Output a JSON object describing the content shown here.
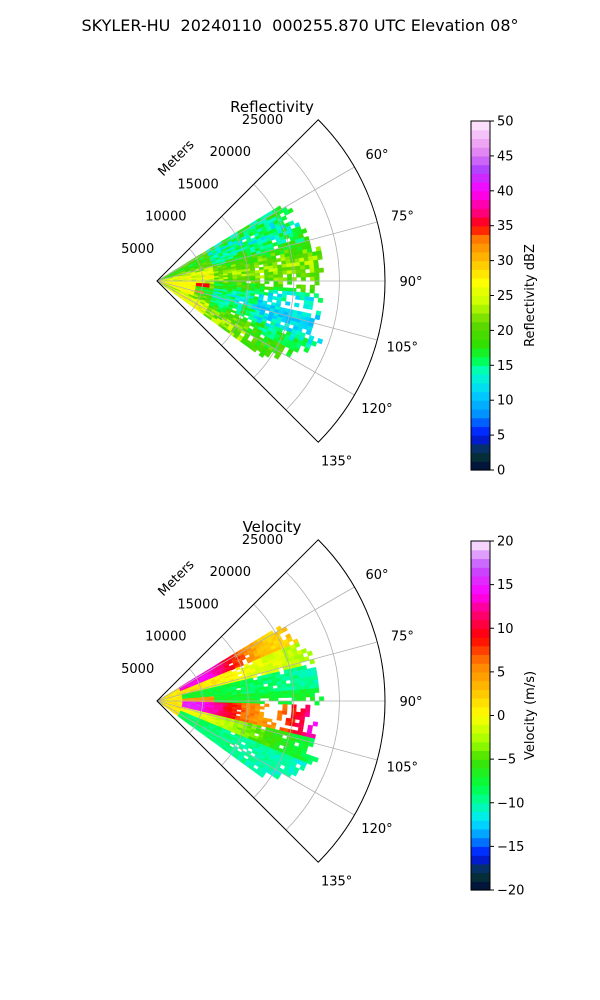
{
  "figure_title": "SKYLER-HU  20240110  000255.870 UTC Elevation 08°",
  "chart_data": [
    {
      "type": "heatmap",
      "projection": "polar sector",
      "title": "Reflectivity",
      "radial_label": "Meters",
      "radial_ticks": [
        5000,
        10000,
        15000,
        20000,
        25000
      ],
      "radial_tick_labels": [
        "5000",
        "10000",
        "15000",
        "20000",
        "25000"
      ],
      "radial_range": [
        0,
        25000
      ],
      "azimuth_range": [
        45,
        135
      ],
      "azimuth_ticks": [
        60,
        75,
        90,
        105,
        120,
        135
      ],
      "azimuth_tick_labels": [
        "60°",
        "75°",
        "90°",
        "105°",
        "120°",
        "135°"
      ],
      "grid": true,
      "colorbar": {
        "label": "Reflectivity dBZ",
        "range": [
          0,
          50
        ],
        "ticks": [
          0,
          5,
          10,
          15,
          20,
          25,
          30,
          35,
          40,
          45,
          50
        ],
        "tick_labels": [
          "0",
          "5",
          "10",
          "15",
          "20",
          "25",
          "30",
          "35",
          "40",
          "45",
          "50"
        ],
        "stops": [
          {
            "v": 0,
            "c": "#000a3c"
          },
          {
            "v": 2.5,
            "c": "#063a36"
          },
          {
            "v": 5,
            "c": "#0010ff"
          },
          {
            "v": 8,
            "c": "#0090ff"
          },
          {
            "v": 11,
            "c": "#00d0ff"
          },
          {
            "v": 14,
            "c": "#00ffc8"
          },
          {
            "v": 16,
            "c": "#00ff40"
          },
          {
            "v": 18,
            "c": "#30e000"
          },
          {
            "v": 21,
            "c": "#60d800"
          },
          {
            "v": 24,
            "c": "#c8ff00"
          },
          {
            "v": 27,
            "c": "#ffff00"
          },
          {
            "v": 30,
            "c": "#ffc000"
          },
          {
            "v": 33,
            "c": "#ff8000"
          },
          {
            "v": 35,
            "c": "#ff0000"
          },
          {
            "v": 37,
            "c": "#ff0080"
          },
          {
            "v": 40,
            "c": "#ff00ff"
          },
          {
            "v": 43,
            "c": "#b040ff"
          },
          {
            "v": 46,
            "c": "#e890f0"
          },
          {
            "v": 50,
            "c": "#ffeeff"
          }
        ]
      },
      "data_description": "mostly 15–25 dBZ (green) echoes within ~18000 m between azimuth 60° and 125°; yellow (~27 dBZ) near radar along 100–105°; small red (~35 dBZ) cores near 5000 m at ~95° and ~105°"
    },
    {
      "type": "heatmap",
      "projection": "polar sector",
      "title": "Velocity",
      "radial_label": "Meters",
      "radial_ticks": [
        5000,
        10000,
        15000,
        20000,
        25000
      ],
      "radial_tick_labels": [
        "5000",
        "10000",
        "15000",
        "20000",
        "25000"
      ],
      "radial_range": [
        0,
        25000
      ],
      "azimuth_range": [
        45,
        135
      ],
      "azimuth_ticks": [
        60,
        75,
        90,
        105,
        120,
        135
      ],
      "azimuth_tick_labels": [
        "60°",
        "75°",
        "90°",
        "105°",
        "120°",
        "135°"
      ],
      "grid": true,
      "colorbar": {
        "label": "Velocity (m/s)",
        "range": [
          -20,
          20
        ],
        "ticks": [
          -20,
          -15,
          -10,
          -5,
          0,
          5,
          10,
          15,
          20
        ],
        "tick_labels": [
          "−20",
          "−15",
          "−10",
          "−5",
          "0",
          "5",
          "10",
          "15",
          "20"
        ],
        "stops": [
          {
            "v": -20,
            "c": "#000a3c"
          },
          {
            "v": -18,
            "c": "#063a36"
          },
          {
            "v": -16,
            "c": "#0010ff"
          },
          {
            "v": -14,
            "c": "#0090ff"
          },
          {
            "v": -12,
            "c": "#00e8ff"
          },
          {
            "v": -10,
            "c": "#00ffa0"
          },
          {
            "v": -8,
            "c": "#00ff40"
          },
          {
            "v": -5,
            "c": "#40e000"
          },
          {
            "v": -3,
            "c": "#a0ff00"
          },
          {
            "v": 0,
            "c": "#ffff00"
          },
          {
            "v": 3,
            "c": "#ffc000"
          },
          {
            "v": 6,
            "c": "#ff8000"
          },
          {
            "v": 9,
            "c": "#ff0000"
          },
          {
            "v": 12,
            "c": "#ff0080"
          },
          {
            "v": 14,
            "c": "#ff00ff"
          },
          {
            "v": 17,
            "c": "#c050ff"
          },
          {
            "v": 20,
            "c": "#ffeeff"
          }
        ]
      },
      "data_description": "positive velocities (red/magenta, 5–15 m/s) in outer band at azimuth 60–70° and band near 95–105°; negative velocities (green/cyan, −5 to −12 m/s) along 80–90° and 115–125°; yellow (~0 m/s) near radar"
    }
  ]
}
